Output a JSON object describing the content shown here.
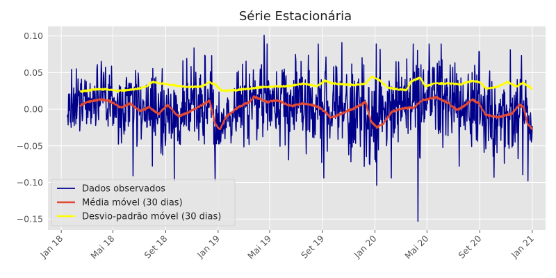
{
  "chart_data": {
    "type": "line",
    "title": "Série Estacionária",
    "xlabel": "",
    "ylabel": "",
    "x_start": "2018-01-15",
    "x_end": "2021-01-01",
    "xlim": [
      "2017-12-01",
      "2021-02-01"
    ],
    "ylim": [
      -0.165,
      0.113
    ],
    "yticks": [
      0.1,
      0.05,
      0.0,
      -0.05,
      -0.1,
      -0.15
    ],
    "ytick_labels": [
      "0.10",
      "0.05",
      "0.00",
      "−0.05",
      "−0.10",
      "−0.15"
    ],
    "xticks": [
      "2018-01-01",
      "2018-05-01",
      "2018-09-01",
      "2019-01-01",
      "2019-05-01",
      "2019-09-01",
      "2020-01-01",
      "2020-05-01",
      "2020-09-01",
      "2021-01-01"
    ],
    "xtick_labels": [
      "Jan 18",
      "Mai 18",
      "Set 18",
      "Jan 19",
      "Mai 19",
      "Set 19",
      "Jan 20",
      "Mai 20",
      "Set 20",
      "Jan 21"
    ],
    "grid": true,
    "legend_position": "lower-left",
    "series": [
      {
        "name": "Dados observados",
        "color": "#00008B",
        "kind": "raw",
        "peaks": [
          {
            "date": "2019-04-18",
            "value": 0.101
          },
          {
            "date": "2019-10-16",
            "value": 0.091
          },
          {
            "date": "2020-04-10",
            "value": -0.153
          },
          {
            "date": "2020-01-05",
            "value": -0.104
          },
          {
            "date": "2019-09-04",
            "value": -0.094
          },
          {
            "date": "2018-06-17",
            "value": -0.091
          },
          {
            "date": "2020-10-04",
            "value": -0.093
          },
          {
            "date": "2020-11-11",
            "value": 0.081
          }
        ]
      },
      {
        "name": "Média móvel (30 dias)",
        "color": "#E24A33",
        "kind": "rolling_mean",
        "points": [
          [
            "2018-02-14",
            0.005
          ],
          [
            "2018-03-05",
            0.01
          ],
          [
            "2018-04-01",
            0.013
          ],
          [
            "2018-04-20",
            0.012
          ],
          [
            "2018-05-20",
            0.002
          ],
          [
            "2018-06-10",
            0.008
          ],
          [
            "2018-07-05",
            -0.003
          ],
          [
            "2018-07-25",
            0.003
          ],
          [
            "2018-08-15",
            -0.007
          ],
          [
            "2018-09-05",
            0.006
          ],
          [
            "2018-10-01",
            -0.01
          ],
          [
            "2018-11-01",
            -0.002
          ],
          [
            "2018-12-01",
            0.008
          ],
          [
            "2018-12-12",
            0.012
          ],
          [
            "2018-12-25",
            -0.02
          ],
          [
            "2019-01-05",
            -0.028
          ],
          [
            "2019-01-20",
            -0.01
          ],
          [
            "2019-02-15",
            0.002
          ],
          [
            "2019-03-15",
            0.01
          ],
          [
            "2019-03-25",
            0.017
          ],
          [
            "2019-04-25",
            0.01
          ],
          [
            "2019-05-20",
            0.012
          ],
          [
            "2019-06-20",
            0.004
          ],
          [
            "2019-07-20",
            0.008
          ],
          [
            "2019-08-20",
            0.004
          ],
          [
            "2019-09-10",
            -0.005
          ],
          [
            "2019-09-20",
            -0.012
          ],
          [
            "2019-10-15",
            -0.006
          ],
          [
            "2019-11-20",
            0.003
          ],
          [
            "2019-12-10",
            0.01
          ],
          [
            "2019-12-22",
            -0.016
          ],
          [
            "2020-01-05",
            -0.025
          ],
          [
            "2020-01-20",
            -0.02
          ],
          [
            "2020-02-10",
            -0.003
          ],
          [
            "2020-03-05",
            0.001
          ],
          [
            "2020-04-01",
            0.002
          ],
          [
            "2020-04-20",
            0.012
          ],
          [
            "2020-05-10",
            0.015
          ],
          [
            "2020-05-25",
            0.016
          ],
          [
            "2020-06-20",
            0.008
          ],
          [
            "2020-07-10",
            -0.001
          ],
          [
            "2020-07-30",
            0.006
          ],
          [
            "2020-08-15",
            0.013
          ],
          [
            "2020-08-30",
            0.008
          ],
          [
            "2020-09-15",
            -0.008
          ],
          [
            "2020-10-15",
            -0.011
          ],
          [
            "2020-11-15",
            -0.006
          ],
          [
            "2020-12-01",
            0.006
          ],
          [
            "2020-12-12",
            0.003
          ],
          [
            "2020-12-20",
            -0.018
          ],
          [
            "2021-01-01",
            -0.028
          ]
        ]
      },
      {
        "name": "Desvio-padrão móvel (30 dias)",
        "color": "#FFFF00",
        "kind": "rolling_std",
        "points": [
          [
            "2018-02-14",
            0.024
          ],
          [
            "2018-03-20",
            0.027
          ],
          [
            "2018-04-20",
            0.027
          ],
          [
            "2018-05-15",
            0.025
          ],
          [
            "2018-06-20",
            0.027
          ],
          [
            "2018-07-15",
            0.03
          ],
          [
            "2018-08-01",
            0.037
          ],
          [
            "2018-08-25",
            0.035
          ],
          [
            "2018-09-25",
            0.032
          ],
          [
            "2018-10-25",
            0.03
          ],
          [
            "2018-11-25",
            0.031
          ],
          [
            "2018-12-10",
            0.037
          ],
          [
            "2018-12-25",
            0.034
          ],
          [
            "2019-01-10",
            0.025
          ],
          [
            "2019-02-10",
            0.026
          ],
          [
            "2019-03-15",
            0.028
          ],
          [
            "2019-04-10",
            0.03
          ],
          [
            "2019-05-20",
            0.031
          ],
          [
            "2019-06-20",
            0.032
          ],
          [
            "2019-07-20",
            0.035
          ],
          [
            "2019-08-20",
            0.031
          ],
          [
            "2019-09-05",
            0.039
          ],
          [
            "2019-09-20",
            0.036
          ],
          [
            "2019-10-15",
            0.034
          ],
          [
            "2019-11-15",
            0.033
          ],
          [
            "2019-12-10",
            0.035
          ],
          [
            "2019-12-25",
            0.045
          ],
          [
            "2020-01-10",
            0.04
          ],
          [
            "2020-01-30",
            0.03
          ],
          [
            "2020-02-25",
            0.027
          ],
          [
            "2020-03-15",
            0.026
          ],
          [
            "2020-03-25",
            0.038
          ],
          [
            "2020-04-15",
            0.043
          ],
          [
            "2020-04-28",
            0.031
          ],
          [
            "2020-05-20",
            0.035
          ],
          [
            "2020-06-20",
            0.035
          ],
          [
            "2020-07-20",
            0.034
          ],
          [
            "2020-08-15",
            0.039
          ],
          [
            "2020-09-01",
            0.037
          ],
          [
            "2020-09-15",
            0.028
          ],
          [
            "2020-10-10",
            0.03
          ],
          [
            "2020-11-05",
            0.037
          ],
          [
            "2020-11-25",
            0.031
          ],
          [
            "2020-12-10",
            0.036
          ],
          [
            "2021-01-01",
            0.028
          ]
        ]
      }
    ]
  }
}
